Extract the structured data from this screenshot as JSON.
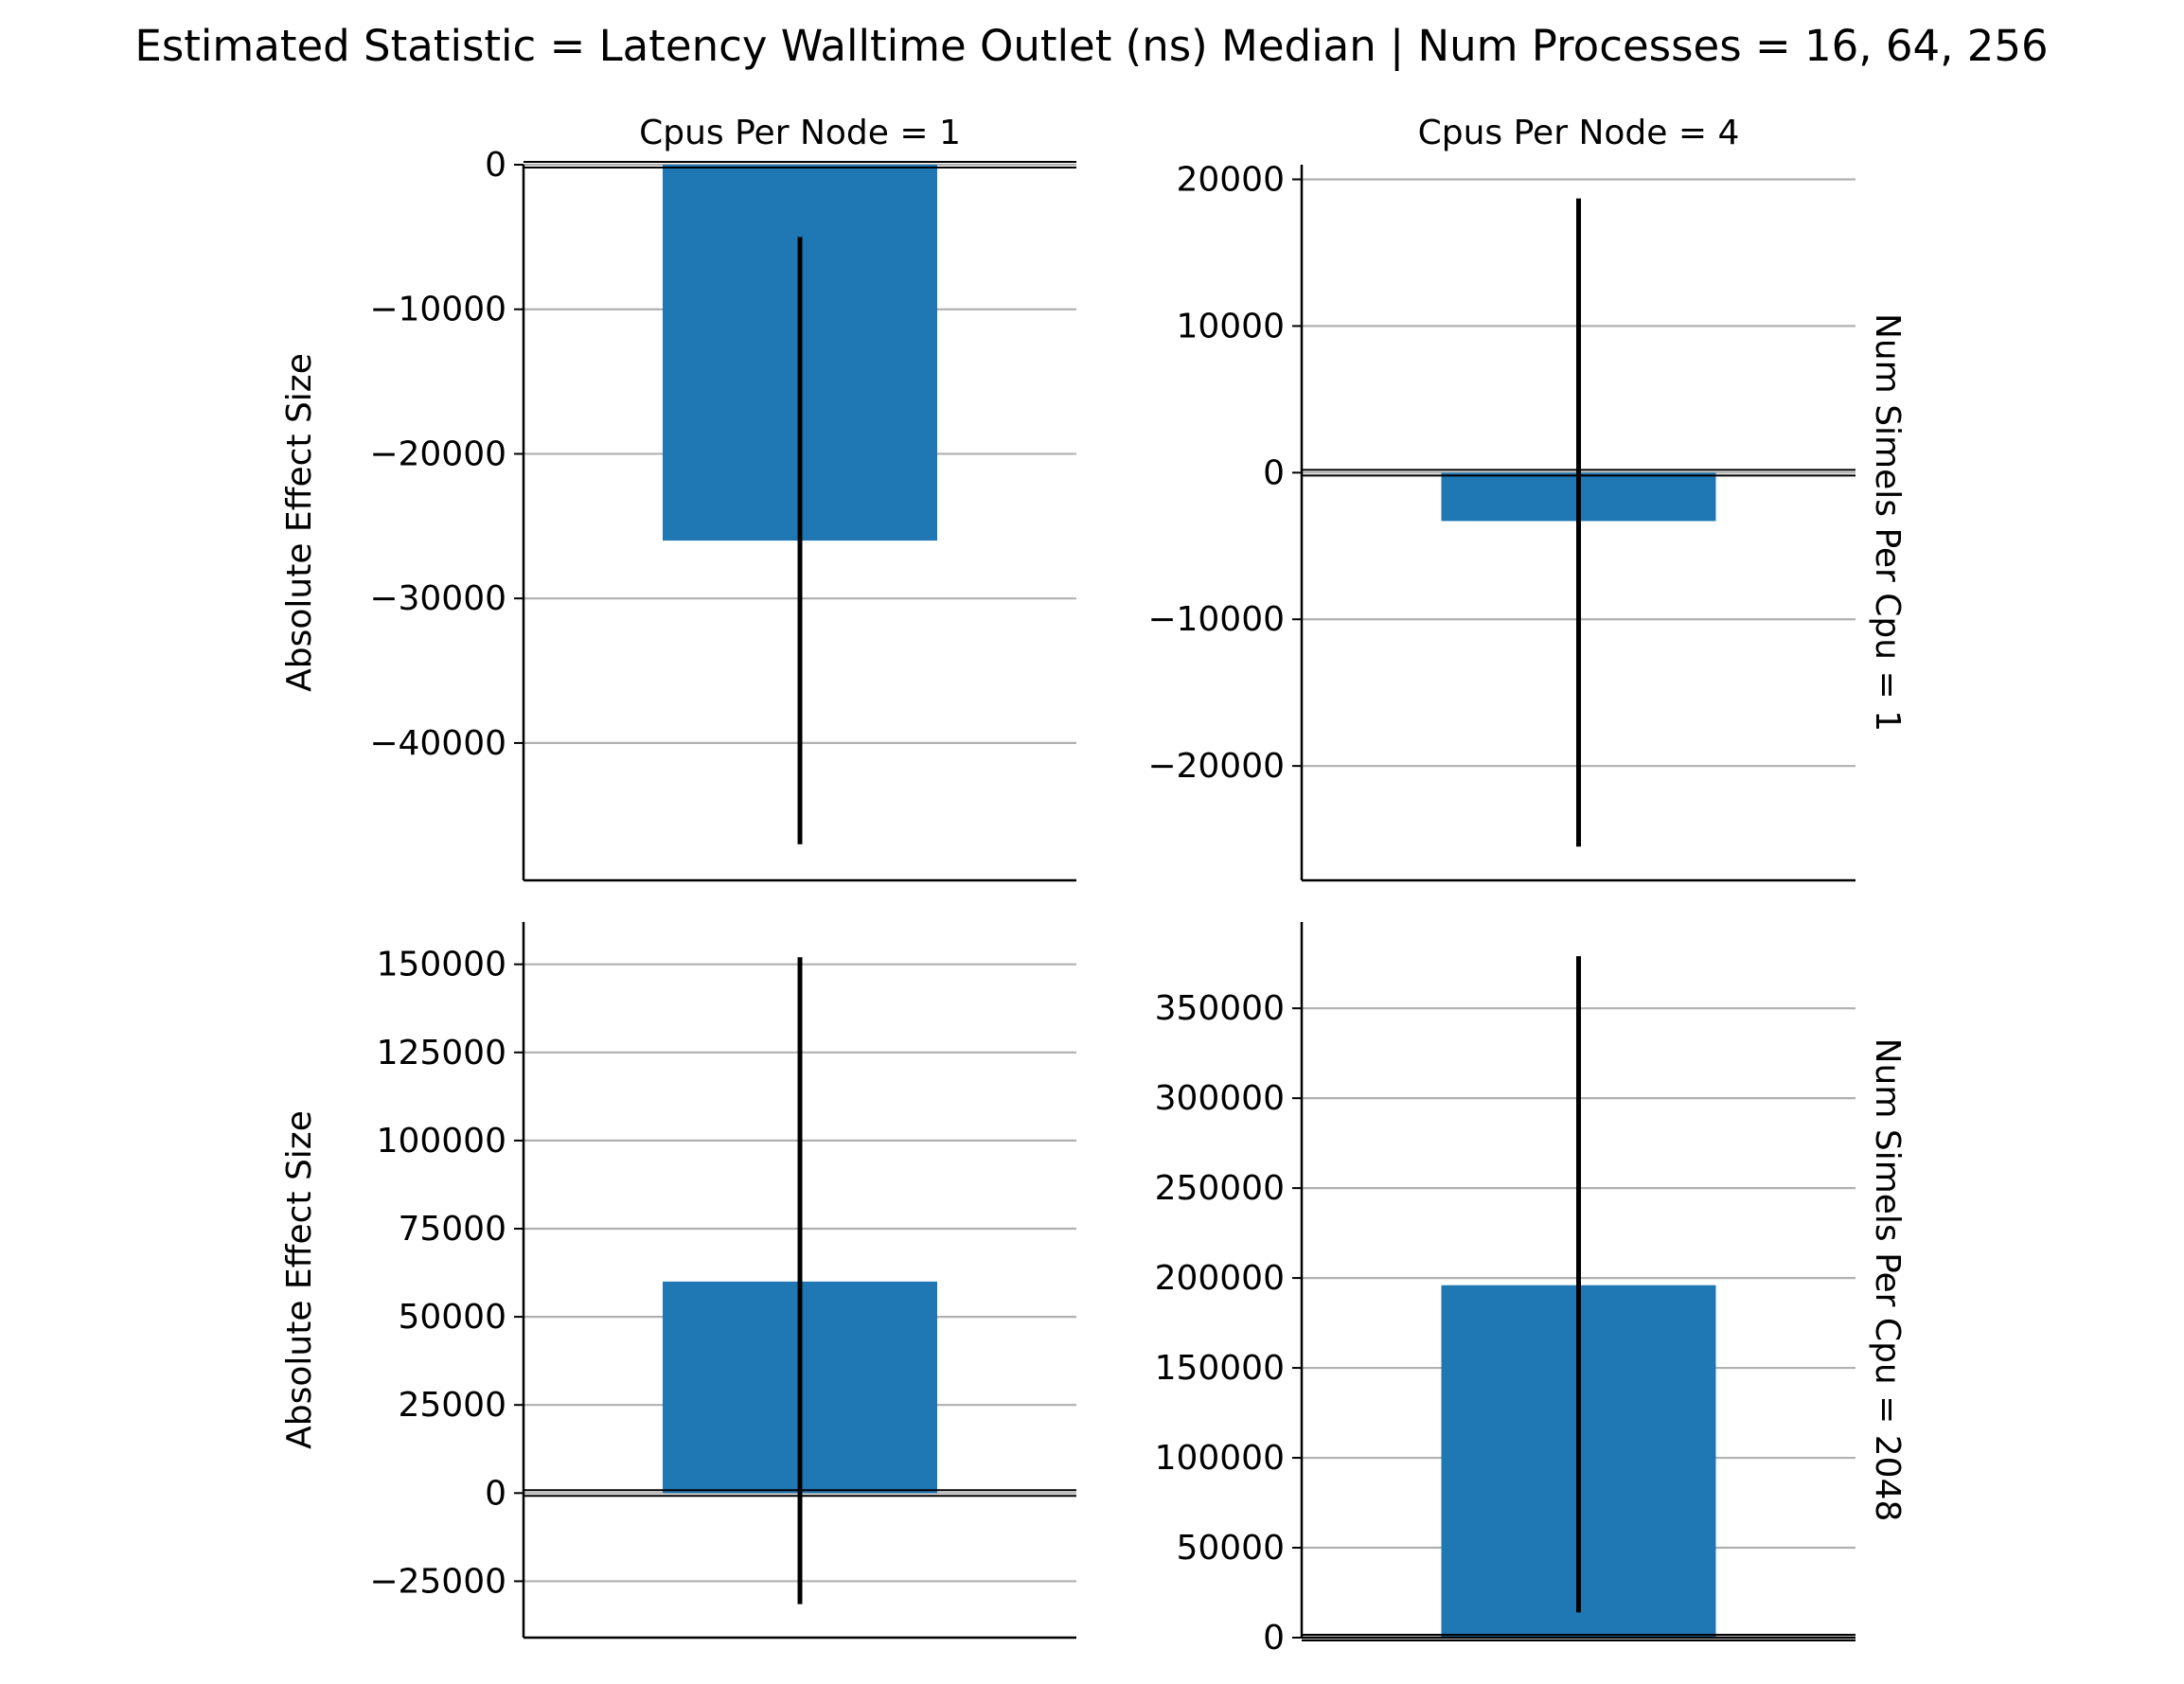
{
  "figure": {
    "suptitle": "Estimated Statistic = Latency Walltime Outlet (ns) Median | Num Processes = 16, 64, 256"
  },
  "chart_data": [
    {
      "type": "bar",
      "col_title": "Cpus Per Node = 1",
      "row_title": "",
      "ylabel": "Absolute Effect Size",
      "value": -26000,
      "ci": [
        -47000,
        -5000
      ],
      "ylim": [
        -49500,
        0
      ],
      "yticks": [
        0,
        -10000,
        -20000,
        -30000,
        -40000
      ],
      "ytick_labels": [
        "0",
        "−10000",
        "−20000",
        "−30000",
        "−40000"
      ],
      "color": "#1f77b4",
      "grid": "y"
    },
    {
      "type": "bar",
      "col_title": "Cpus Per Node = 4",
      "row_title": "Num Simels Per Cpu = 1",
      "ylabel": "",
      "value": -3300,
      "ci": [
        -25500,
        18700
      ],
      "ylim": [
        -27800,
        21000
      ],
      "yticks": [
        20000,
        10000,
        0,
        -10000,
        -20000
      ],
      "ytick_labels": [
        "20000",
        "10000",
        "0",
        "−10000",
        "−20000"
      ],
      "color": "#1f77b4",
      "grid": "y"
    },
    {
      "type": "bar",
      "col_title": "",
      "row_title": "",
      "ylabel": "Absolute Effect Size",
      "value": 60000,
      "ci": [
        -31500,
        152000
      ],
      "ylim": [
        -41000,
        162000
      ],
      "yticks": [
        150000,
        125000,
        100000,
        75000,
        50000,
        25000,
        0,
        -25000
      ],
      "ytick_labels": [
        "150000",
        "125000",
        "100000",
        "75000",
        "50000",
        "25000",
        "0",
        "−25000"
      ],
      "color": "#1f77b4",
      "grid": "y"
    },
    {
      "type": "bar",
      "col_title": "",
      "row_title": "Num Simels Per Cpu = 2048",
      "ylabel": "",
      "value": 196000,
      "ci": [
        14000,
        379000
      ],
      "ylim": [
        0,
        398000
      ],
      "yticks": [
        350000,
        300000,
        250000,
        200000,
        150000,
        100000,
        50000,
        0
      ],
      "ytick_labels": [
        "350000",
        "300000",
        "250000",
        "200000",
        "150000",
        "100000",
        "50000",
        "0"
      ],
      "color": "#1f77b4",
      "grid": "y"
    }
  ]
}
